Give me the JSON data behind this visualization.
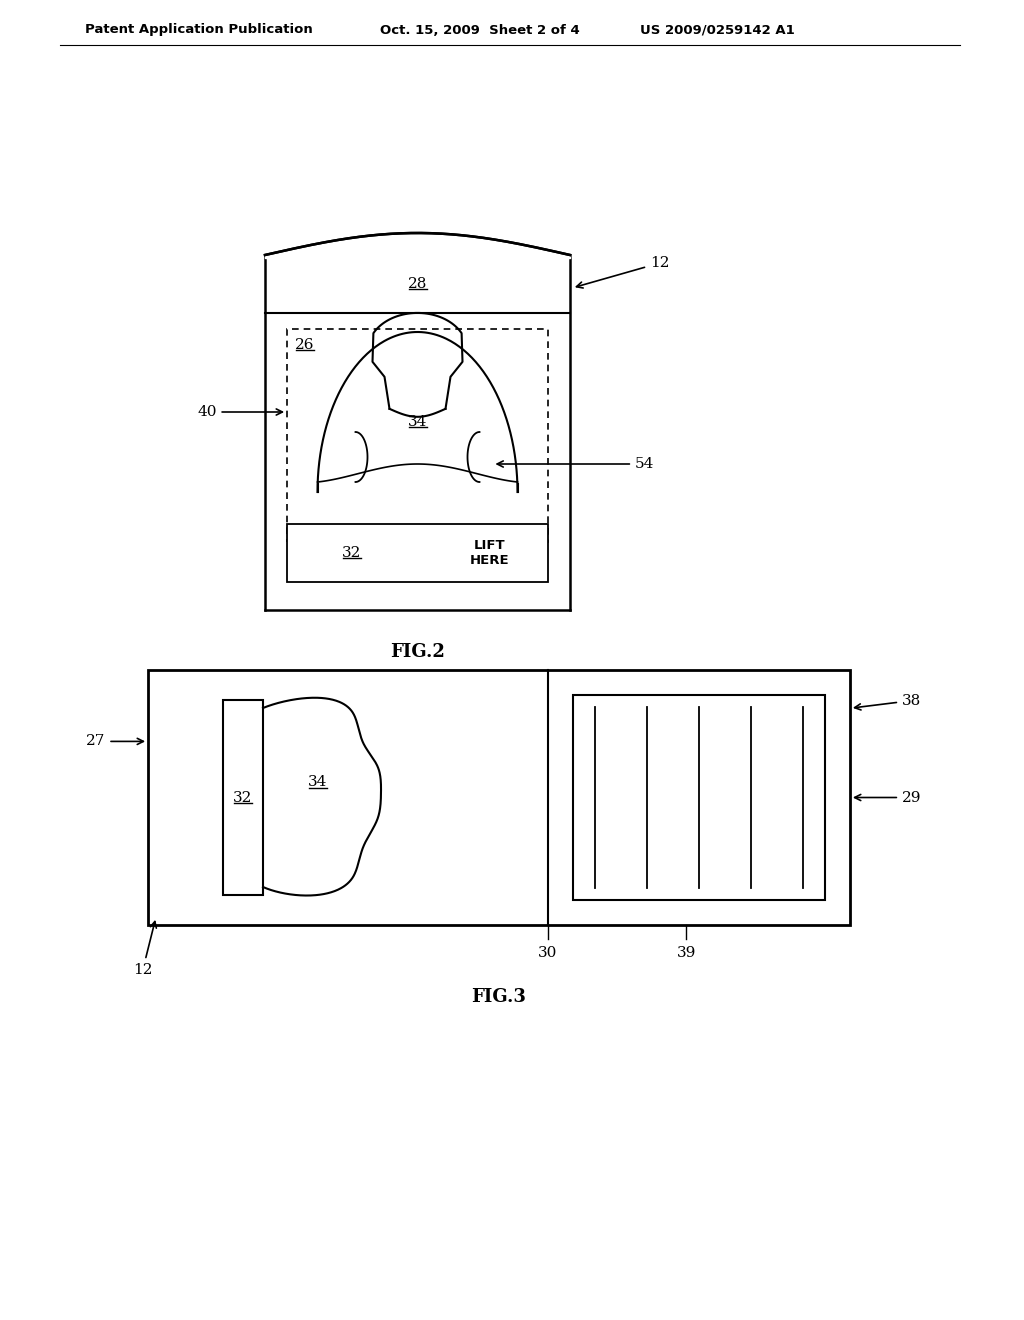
{
  "bg_color": "#ffffff",
  "line_color": "#000000",
  "header_text": "Patent Application Publication",
  "header_date": "Oct. 15, 2009  Sheet 2 of 4",
  "header_patent": "US 2009/0259142 A1",
  "fig2_caption": "FIG.2",
  "fig3_caption": "FIG.3"
}
